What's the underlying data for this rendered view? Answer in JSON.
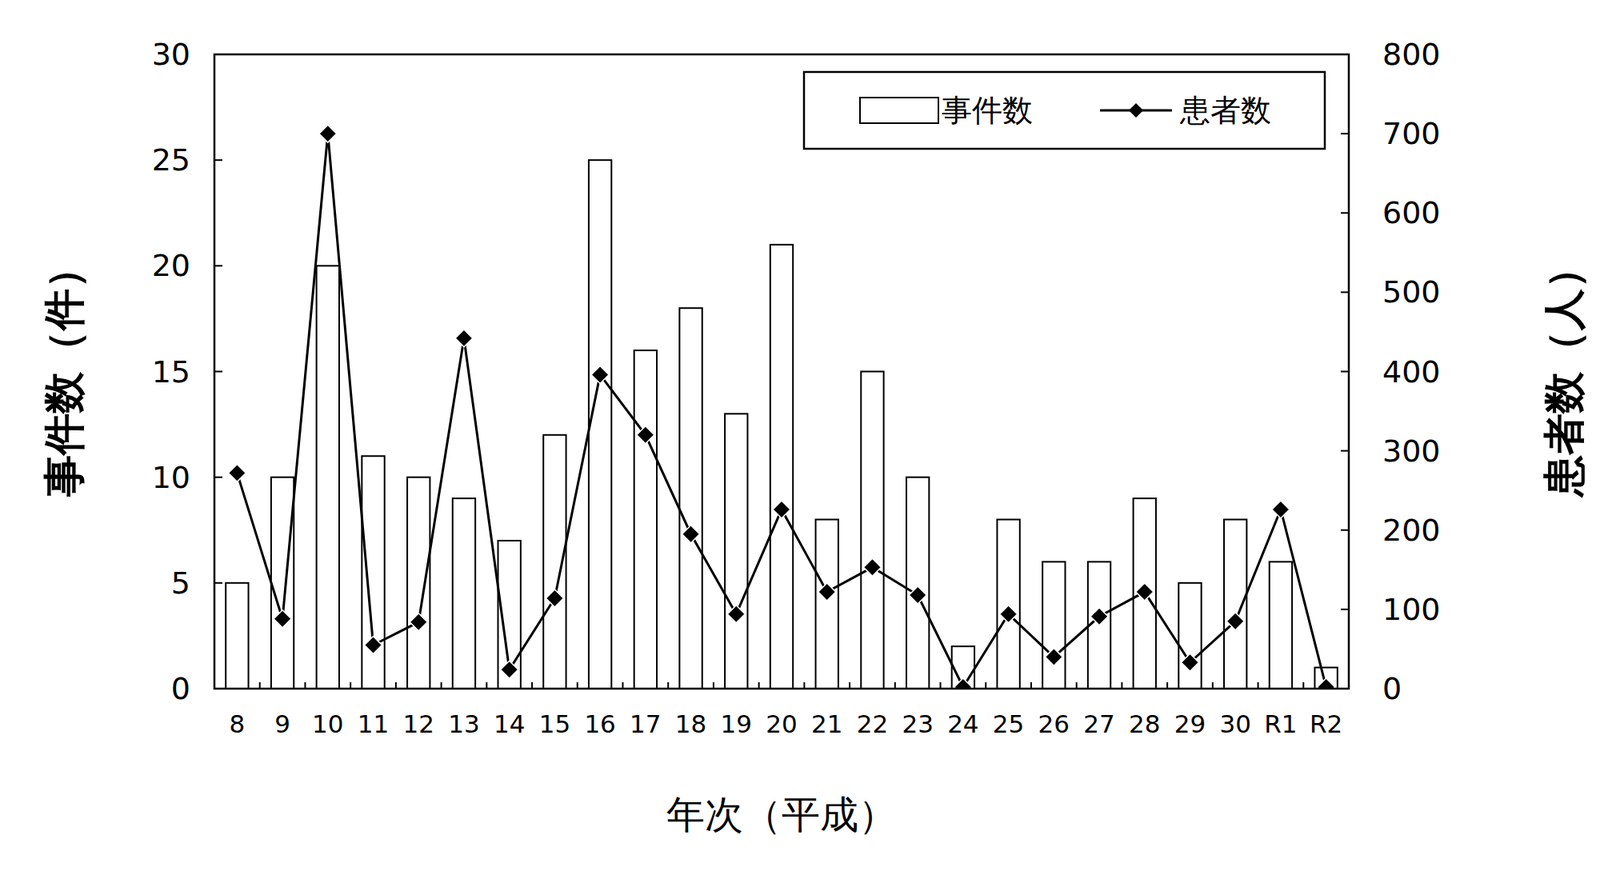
{
  "chart_data": {
    "type": "bar",
    "categories": [
      "8",
      "9",
      "10",
      "11",
      "12",
      "13",
      "14",
      "15",
      "16",
      "17",
      "18",
      "19",
      "20",
      "21",
      "22",
      "23",
      "24",
      "25",
      "26",
      "27",
      "28",
      "29",
      "30",
      "R1",
      "R2"
    ],
    "series": [
      {
        "name": "事件数",
        "type": "bar",
        "color": "#ffffff",
        "values": [
          5,
          10,
          20,
          11,
          10,
          9,
          7,
          12,
          25,
          16,
          18,
          13,
          21,
          8,
          15,
          10,
          2,
          8,
          6,
          6,
          9,
          5,
          8,
          6,
          1
        ]
      },
      {
        "name": "患者数",
        "type": "line",
        "axis": "y2",
        "color": "#000000",
        "marker": "diamond",
        "values": [
          272,
          88,
          700,
          55,
          84,
          442,
          24,
          114,
          396,
          320,
          195,
          94,
          226,
          122,
          153,
          118,
          2,
          94,
          40,
          91,
          122,
          33,
          85,
          226,
          2
        ]
      }
    ],
    "x_label": "年次（平成）",
    "y_label": "事件数（件）",
    "y2_label": "患者数（人）",
    "ylim": [
      0,
      30
    ],
    "yticks": [
      0,
      5,
      10,
      15,
      20,
      25,
      30
    ],
    "y2lim": [
      0,
      800
    ],
    "y2ticks": [
      0,
      100,
      200,
      300,
      400,
      500,
      600,
      700,
      800
    ],
    "legend": "top-right"
  }
}
